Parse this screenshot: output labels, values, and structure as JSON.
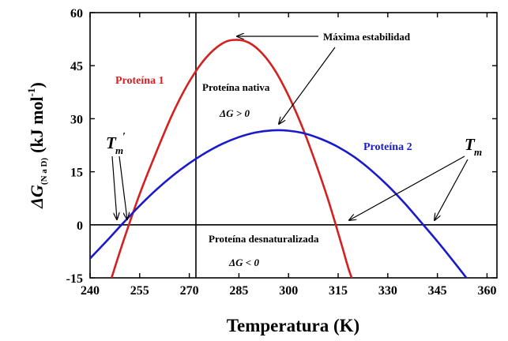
{
  "chart_data": {
    "type": "line",
    "xlabel": "Temperatura (K)",
    "ylabel_main": "ΔG",
    "ylabel_sub": "(N a D)",
    "ylabel_unit_open": "(kJ mol",
    "ylabel_unit_exp": "-1",
    "ylabel_unit_close": ")",
    "xlim": [
      240,
      363
    ],
    "ylim": [
      -15,
      60
    ],
    "xticks": [
      240,
      255,
      270,
      285,
      300,
      315,
      330,
      345,
      360
    ],
    "yticks": [
      -15,
      0,
      15,
      30,
      45,
      60
    ],
    "grid": false,
    "reference_lines": {
      "vertical_x": 272,
      "horizontal_y": 0
    },
    "series": [
      {
        "name": "Proteína 1",
        "color": "#d42020",
        "x": [
          246.5,
          250,
          255,
          260,
          265,
          270,
          275,
          280,
          284,
          288,
          292,
          296,
          300,
          304,
          308,
          312,
          316,
          318,
          320,
          323
        ],
        "y": [
          -15,
          -4.8,
          8.7,
          20.5,
          31.5,
          40.5,
          47.2,
          51.3,
          52.3,
          51.5,
          48.5,
          43.5,
          36.5,
          28,
          18,
          7,
          -5.5,
          -12,
          -17.5,
          -26
        ]
      },
      {
        "name": "Proteína 2",
        "color": "#1a1acc",
        "x": [
          240,
          245,
          250,
          255,
          260,
          265,
          270,
          275,
          280,
          285,
          290,
          295,
          300,
          305,
          310,
          315,
          320,
          325,
          330,
          335,
          340,
          345,
          350,
          355,
          357
        ],
        "y": [
          -9.5,
          -4.6,
          0.5,
          5.4,
          9.9,
          13.9,
          17.4,
          20.4,
          22.9,
          24.8,
          26.1,
          26.7,
          26.6,
          25.8,
          24.2,
          22,
          19.1,
          15.4,
          11.1,
          6.2,
          0.8,
          -4.7,
          -10.5,
          -16.5,
          -19
        ]
      }
    ],
    "annotations": {
      "max_stability": "Máxima estabilidad",
      "native": "Proteína nativa",
      "native_cond": "ΔG > 0",
      "denatured": "Proteína desnaturalizada",
      "denatured_cond": "ΔG < 0",
      "tm_base": "T",
      "tm_sub": "m",
      "tm_prime": "′"
    }
  }
}
